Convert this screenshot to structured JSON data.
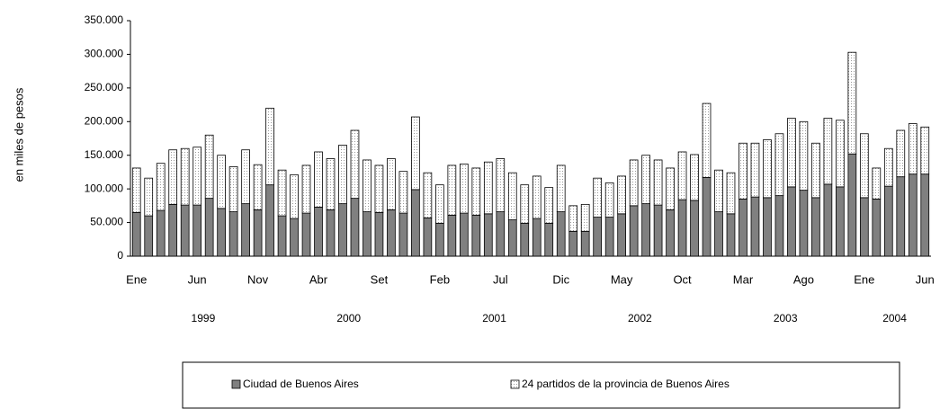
{
  "chart_data": {
    "type": "stacked_bar",
    "y_label": "en miles de pesos",
    "categories": [
      "Ene",
      null,
      null,
      null,
      null,
      "Jun",
      null,
      null,
      null,
      null,
      "Nov",
      null,
      null,
      null,
      null,
      "Abr",
      null,
      null,
      null,
      null,
      "Set",
      null,
      null,
      null,
      null,
      "Feb",
      null,
      null,
      null,
      null,
      "Jul",
      null,
      null,
      null,
      null,
      "Dic",
      null,
      null,
      null,
      null,
      "May",
      null,
      null,
      null,
      null,
      "Oct",
      null,
      null,
      null,
      null,
      "Mar",
      null,
      null,
      null,
      null,
      "Ago",
      null,
      null,
      null,
      null,
      "Ene",
      null,
      null,
      null,
      null,
      "Jun"
    ],
    "years": [
      "1999",
      "2000",
      "2001",
      "2002",
      "2003",
      "2004"
    ],
    "series": [
      {
        "name": "Ciudad de Buenos Aires",
        "color": "#808080",
        "values": [
          65000,
          60000,
          68000,
          77000,
          76000,
          76000,
          86000,
          71000,
          66000,
          78000,
          69000,
          106000,
          60000,
          56000,
          64000,
          73000,
          69000,
          78000,
          86000,
          66000,
          65000,
          69000,
          64000,
          99000,
          57000,
          49000,
          61000,
          64000,
          61000,
          63000,
          66000,
          54000,
          49000,
          56000,
          49000,
          66000,
          37000,
          37000,
          58000,
          58000,
          63000,
          75000,
          78000,
          76000,
          69000,
          84000,
          83000,
          117000,
          66000,
          63000,
          85000,
          88000,
          87000,
          90000,
          103000,
          98000,
          87000,
          107000,
          103000,
          152000,
          87000,
          85000,
          104000,
          118000,
          122000,
          122000
        ]
      },
      {
        "name": "24 partidos de la provincia de Buenos Aires",
        "color": "#ffffff",
        "values": [
          66000,
          56000,
          70000,
          81000,
          84000,
          86000,
          94000,
          79000,
          67000,
          80000,
          67000,
          114000,
          68000,
          65000,
          71000,
          82000,
          76000,
          87000,
          101000,
          77000,
          70000,
          76000,
          62000,
          108000,
          67000,
          57000,
          74000,
          73000,
          70000,
          77000,
          79000,
          70000,
          57000,
          63000,
          53000,
          69000,
          38000,
          40000,
          58000,
          51000,
          56000,
          68000,
          72000,
          67000,
          62000,
          71000,
          68000,
          110000,
          62000,
          61000,
          83000,
          80000,
          86000,
          92000,
          102000,
          102000,
          81000,
          98000,
          99000,
          151000,
          95000,
          46000,
          56000,
          69000,
          75000,
          70000
        ]
      }
    ],
    "ylim": [
      0,
      350000
    ],
    "yticks": [
      0,
      {
        "value": 50000,
        "label": "50.000"
      },
      {
        "value": 100000,
        "label": "100.000"
      },
      {
        "value": 150000,
        "label": "150.000"
      },
      {
        "value": 200000,
        "label": "200.000"
      },
      {
        "value": 250000,
        "label": "250.000"
      },
      {
        "value": 300000,
        "label": "300.000"
      },
      {
        "value": 350000,
        "label": "350.000"
      }
    ]
  }
}
